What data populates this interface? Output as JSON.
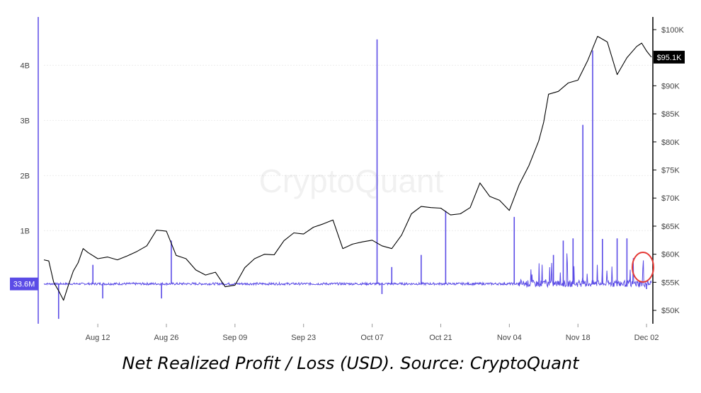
{
  "caption": "Net Realized Profit / Loss (USD). Source: CryptoQuant",
  "watermark": "CryptoQuant",
  "colors": {
    "profit_loss": "#5b4ce6",
    "price": "#000000",
    "highlight": "#e53935",
    "badge_bg": "#000000",
    "left_badge_bg": "#5b4ce6"
  },
  "chart_data": {
    "type": "line",
    "x_ticks": [
      "Aug 12",
      "Aug 26",
      "Sep 09",
      "Sep 23",
      "Oct 07",
      "Oct 21",
      "Nov 04",
      "Nov 18",
      "Dec 02"
    ],
    "y_left_ticks": [
      "1B",
      "2B",
      "3B",
      "4B"
    ],
    "y_left_values": [
      1000000000,
      2000000000,
      3000000000,
      4000000000
    ],
    "y_left_range": [
      -650000000,
      4800000000
    ],
    "y_right_ticks": [
      "$50K",
      "$55K",
      "$60K",
      "$65K",
      "$70K",
      "$75K",
      "$80K",
      "$85K",
      "$90K",
      "$95K",
      "$100K"
    ],
    "y_right_values": [
      50000,
      55000,
      60000,
      65000,
      70000,
      75000,
      80000,
      85000,
      90000,
      95000,
      100000
    ],
    "y_right_range": [
      48000,
      101500
    ],
    "x_range": [
      "2024-08-01",
      "2024-12-03"
    ],
    "latest_profit_loss_label": "33.6M",
    "latest_price_label": "$95.1K",
    "grid": false,
    "series": [
      {
        "type": "line",
        "x": [
          "2024-08-01",
          "2024-08-02",
          "2024-08-03",
          "2024-08-04",
          "2024-08-05",
          "2024-08-06",
          "2024-08-07",
          "2024-08-08",
          "2024-08-09",
          "2024-08-10",
          "2024-08-12",
          "2024-08-14",
          "2024-08-16",
          "2024-08-18",
          "2024-08-20",
          "2024-08-22",
          "2024-08-24",
          "2024-08-26",
          "2024-08-28",
          "2024-08-30",
          "2024-09-01",
          "2024-09-03",
          "2024-09-05",
          "2024-09-07",
          "2024-09-09",
          "2024-09-11",
          "2024-09-13",
          "2024-09-15",
          "2024-09-17",
          "2024-09-19",
          "2024-09-21",
          "2024-09-23",
          "2024-09-25",
          "2024-09-27",
          "2024-09-29",
          "2024-10-01",
          "2024-10-03",
          "2024-10-05",
          "2024-10-07",
          "2024-10-09",
          "2024-10-11",
          "2024-10-13",
          "2024-10-15",
          "2024-10-17",
          "2024-10-19",
          "2024-10-21",
          "2024-10-23",
          "2024-10-25",
          "2024-10-27",
          "2024-10-29",
          "2024-10-31",
          "2024-11-02",
          "2024-11-04",
          "2024-11-06",
          "2024-11-08",
          "2024-11-10",
          "2024-11-11",
          "2024-11-12",
          "2024-11-14",
          "2024-11-16",
          "2024-11-18",
          "2024-11-20",
          "2024-11-22",
          "2024-11-24",
          "2024-11-26",
          "2024-11-28",
          "2024-11-30",
          "2024-12-01",
          "2024-12-02",
          "2024-12-03"
        ],
        "y": [
          59000,
          58800,
          55000,
          53500,
          51800,
          54500,
          57000,
          58500,
          61000,
          60300,
          59200,
          59500,
          59000,
          59700,
          60500,
          61500,
          64300,
          64100,
          59800,
          59200,
          57200,
          56300,
          56800,
          54200,
          54500,
          57600,
          59200,
          60000,
          59900,
          62400,
          63800,
          63600,
          64800,
          65400,
          66100,
          61000,
          61800,
          62200,
          62500,
          61500,
          61000,
          63400,
          67200,
          68500,
          68300,
          68200,
          67000,
          67200,
          68300,
          72700,
          70300,
          69600,
          67800,
          72400,
          75800,
          80200,
          83500,
          88500,
          89000,
          90500,
          91000,
          94500,
          98800,
          97800,
          92000,
          95000,
          97000,
          97600,
          96200,
          95100
        ],
        "style": "price"
      }
    ]
  }
}
